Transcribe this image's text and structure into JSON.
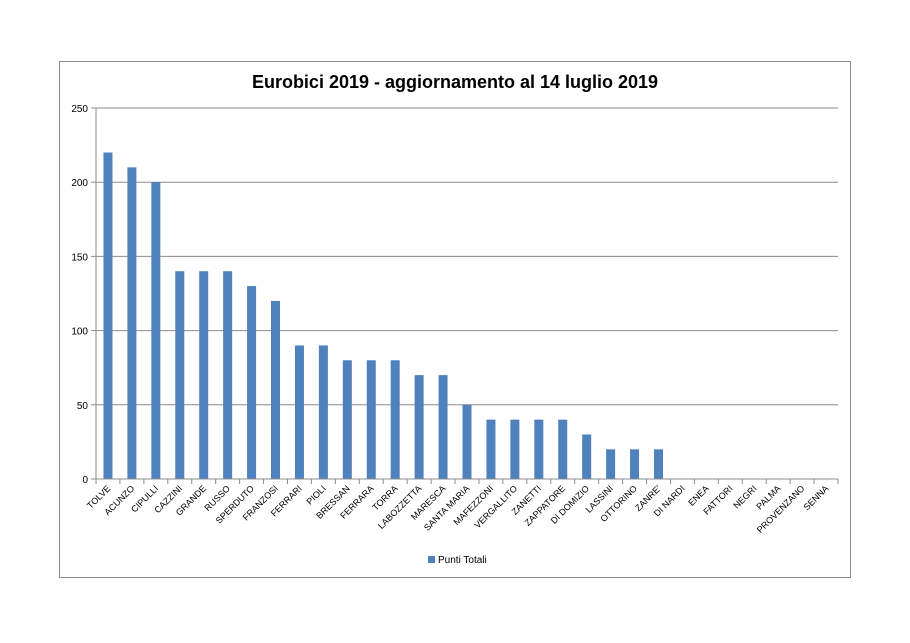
{
  "chart_data": {
    "type": "bar",
    "title": "Eurobici 2019 - aggiornamento al 14 luglio 2019",
    "xlabel": "",
    "ylabel": "",
    "ylim": [
      0,
      250
    ],
    "yticks": [
      0,
      50,
      100,
      150,
      200,
      250
    ],
    "grid": true,
    "legend_position": "bottom",
    "categories": [
      "TOLVE",
      "ACUNZO",
      "CIPULLI",
      "CAZZINI",
      "GRANDE",
      "RUSSO",
      "SPERDUTO",
      "FRANZOSI",
      "FERRARI",
      "PIOLI",
      "BRESSAN",
      "FERRARA",
      "TORRA",
      "LABOZZETTA",
      "MARESCA",
      "SANTA MARIA",
      "MAFEZZONI",
      "VERGALLITO",
      "ZANETTI",
      "ZAPPATORE",
      "DI DOMIZIO",
      "LASSINI",
      "OTTORINO",
      "ZANRE'",
      "DI NARDI",
      "ENEA",
      "FATTORI",
      "NEGRI",
      "PALMA",
      "PROVENZANO",
      "SENNA"
    ],
    "series": [
      {
        "name": "Punti Totali",
        "color": "#4f81bd",
        "values": [
          220,
          210,
          200,
          140,
          140,
          140,
          130,
          120,
          90,
          90,
          80,
          80,
          80,
          70,
          70,
          50,
          40,
          40,
          40,
          40,
          30,
          20,
          20,
          20,
          0,
          0,
          0,
          0,
          0,
          0,
          0
        ]
      }
    ]
  }
}
